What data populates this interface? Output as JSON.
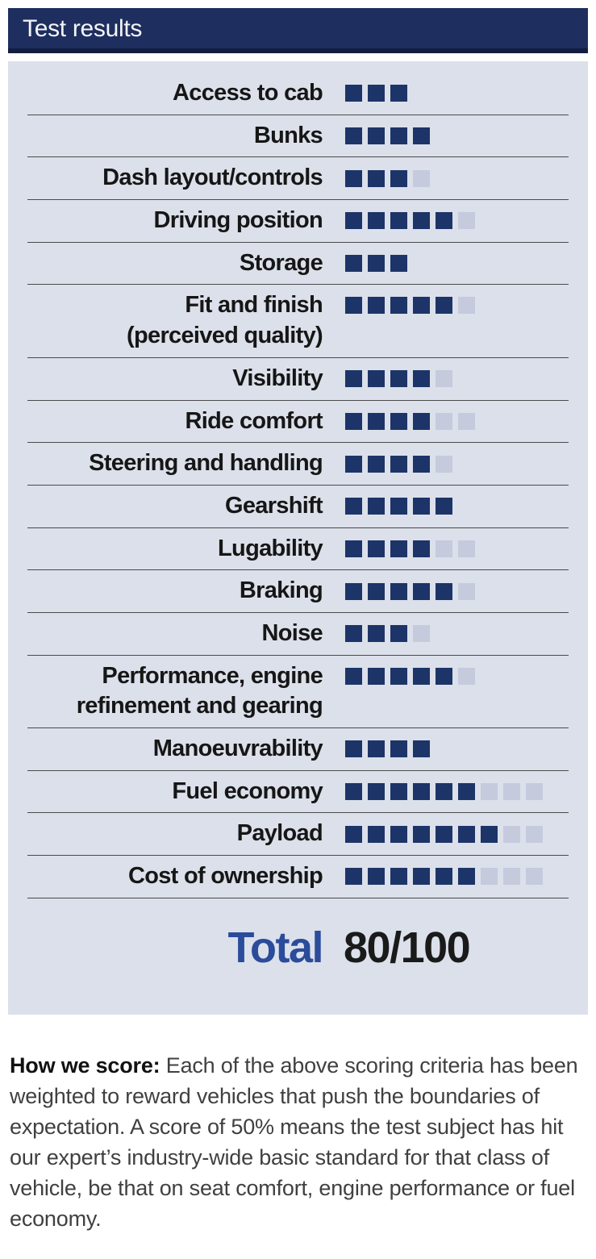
{
  "header": {
    "title": "Test results"
  },
  "colors": {
    "header_bg": "#1e2e5e",
    "header_edge": "#121d40",
    "panel_bg": "#dbe0ea",
    "square_filled": "#1d3468",
    "square_empty": "#c6cadd",
    "total_blue": "#2b4b9b",
    "separator": "#4a4a4a"
  },
  "chart_data": {
    "type": "bar",
    "title": "Test results",
    "note": "Each row shows points scored (dark squares) out of a weighted maximum (dark + light squares); totals sum to 100.",
    "rows": [
      {
        "label": "Access to cab",
        "score": 3,
        "max": 3
      },
      {
        "label": "Bunks",
        "score": 4,
        "max": 4
      },
      {
        "label": "Dash layout/controls",
        "score": 3,
        "max": 4
      },
      {
        "label": "Driving position",
        "score": 5,
        "max": 6
      },
      {
        "label": "Storage",
        "score": 3,
        "max": 3
      },
      {
        "label": "Fit and finish",
        "label2": "(perceived quality)",
        "score": 5,
        "max": 6
      },
      {
        "label": "Visibility",
        "score": 4,
        "max": 5
      },
      {
        "label": "Ride comfort",
        "score": 4,
        "max": 6
      },
      {
        "label": "Steering and handling",
        "score": 4,
        "max": 5
      },
      {
        "label": "Gearshift",
        "score": 5,
        "max": 5
      },
      {
        "label": "Lugability",
        "score": 4,
        "max": 6
      },
      {
        "label": "Braking",
        "score": 5,
        "max": 6
      },
      {
        "label": "Noise",
        "score": 3,
        "max": 4
      },
      {
        "label": "Performance, engine",
        "label2": "refinement and gearing",
        "score": 5,
        "max": 6
      },
      {
        "label": "Manoeuvrability",
        "score": 4,
        "max": 4
      },
      {
        "label": "Fuel economy",
        "score": 6,
        "max": 9
      },
      {
        "label": "Payload",
        "score": 7,
        "max": 9
      },
      {
        "label": "Cost of ownership",
        "score": 6,
        "max": 9
      }
    ],
    "total": {
      "label": "Total",
      "value": "80/100"
    }
  },
  "footer": {
    "lead": "How we score:",
    "body": " Each of the above scoring criteria has been weighted to reward vehicles that push the boundaries of expectation. A score of 50% means the test subject has hit our expert’s industry-wide basic standard for that class of vehicle, be that on seat comfort, engine performance or fuel economy."
  }
}
